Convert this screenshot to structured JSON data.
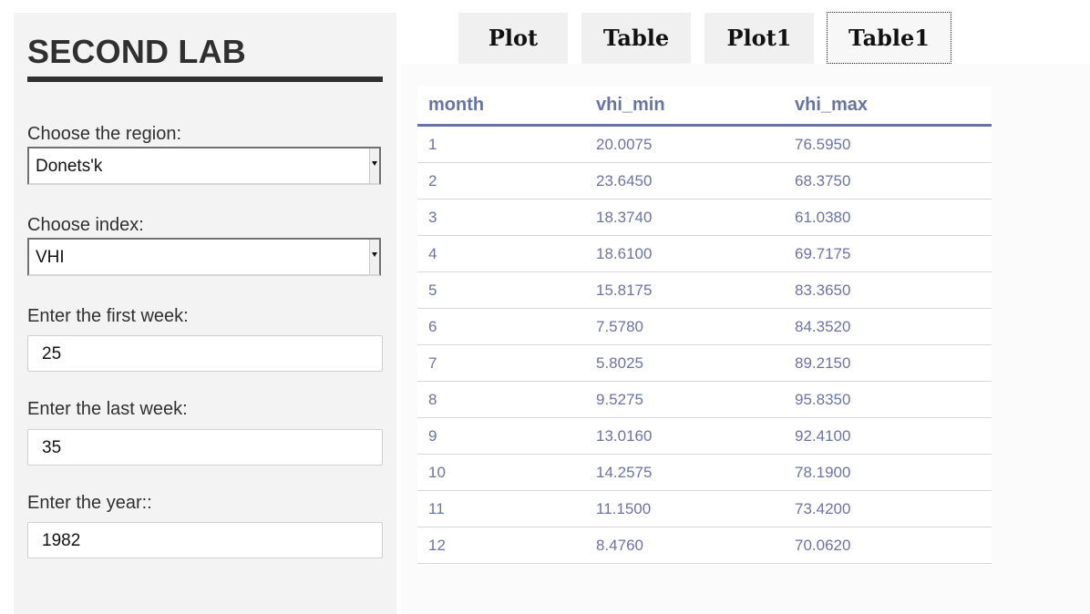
{
  "sidebar": {
    "title": "SECOND LAB",
    "region_label": "Choose the region:",
    "region_value": "Donets'k",
    "index_label": "Choose index:",
    "index_value": "VHI",
    "first_week_label": "Enter the first week:",
    "first_week_value": "25",
    "last_week_label": "Enter the last week:",
    "last_week_value": "35",
    "year_label": "Enter the year::",
    "year_value": "1982"
  },
  "tabs": [
    {
      "label": "Plot",
      "active": false
    },
    {
      "label": "Table",
      "active": false
    },
    {
      "label": "Plot1",
      "active": false
    },
    {
      "label": "Table1",
      "active": true
    }
  ],
  "table": {
    "headers": [
      "month",
      "vhi_min",
      "vhi_max"
    ],
    "rows": [
      [
        "1",
        "20.0075",
        "76.5950"
      ],
      [
        "2",
        "23.6450",
        "68.3750"
      ],
      [
        "3",
        "18.3740",
        "61.0380"
      ],
      [
        "4",
        "18.6100",
        "69.7175"
      ],
      [
        "5",
        "15.8175",
        "83.3650"
      ],
      [
        "6",
        "7.5780",
        "84.3520"
      ],
      [
        "7",
        "5.8025",
        "89.2150"
      ],
      [
        "8",
        "9.5275",
        "95.8350"
      ],
      [
        "9",
        "13.0160",
        "92.4100"
      ],
      [
        "10",
        "14.2575",
        "78.1900"
      ],
      [
        "11",
        "11.1500",
        "73.4200"
      ],
      [
        "12",
        "8.4760",
        "70.0620"
      ]
    ]
  },
  "colors": {
    "table_text": "#6a74a6",
    "sidebar_bg": "#f3f3f3",
    "title": "#303030"
  }
}
